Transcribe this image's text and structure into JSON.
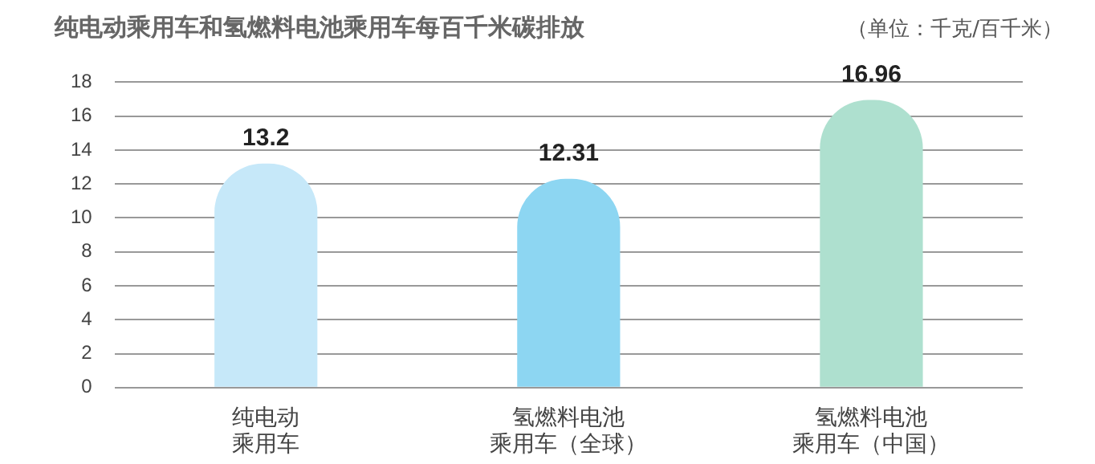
{
  "chart_data": {
    "type": "bar",
    "title": "纯电动乘用车和氢燃料电池乘用车每百千米碳排放",
    "subtitle": "（单位：千克/百千米）",
    "categories": [
      "纯电动乘用车",
      "氢燃料电池乘用车（全球）",
      "氢燃料电池乘用车（中国）"
    ],
    "values": [
      13.2,
      12.31,
      16.96
    ],
    "colors": [
      "#c6e8f9",
      "#8dd6f2",
      "#aee0cf"
    ],
    "ylim": [
      0,
      18
    ],
    "yticks": [
      0,
      2,
      4,
      6,
      8,
      10,
      12,
      14,
      16,
      18
    ],
    "grid": "y",
    "data_labels": true
  }
}
